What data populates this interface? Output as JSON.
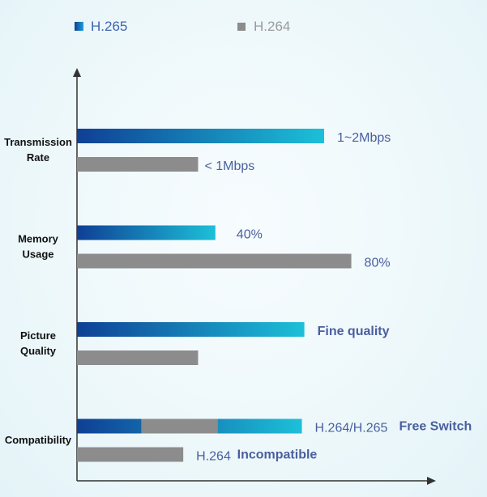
{
  "chart_data": {
    "type": "bar",
    "orientation": "horizontal",
    "legend": [
      {
        "name": "H.265",
        "color": "#1d5aa8"
      },
      {
        "name": "H.264",
        "color": "#8c8c8c"
      }
    ],
    "colors": {
      "h265_start": "#0f3f95",
      "h265_end": "#1cc0d8",
      "h264": "#8c8c8c",
      "label": "#4a5f9e",
      "axis": "#333333"
    },
    "categories": [
      {
        "label_lines": [
          "Transmission",
          "Rate"
        ],
        "bars": [
          {
            "series": "H.265",
            "value": 1.0,
            "label": "1~2Mbps",
            "label_bold": false
          },
          {
            "series": "H.264",
            "value": 0.49,
            "label": "< 1Mbps",
            "label_bold": false
          }
        ]
      },
      {
        "label_lines": [
          "Memory",
          "Usage"
        ],
        "bars": [
          {
            "series": "H.265",
            "value": 0.56,
            "label": "40%",
            "label_bold": false
          },
          {
            "series": "H.264",
            "value": 1.11,
            "label": "80%",
            "label_bold": false
          }
        ]
      },
      {
        "label_lines": [
          "Picture",
          "Quality"
        ],
        "bars": [
          {
            "series": "H.265",
            "value": 0.92,
            "label": "Fine quality",
            "label_bold": true
          },
          {
            "series": "H.264",
            "value": 0.49,
            "label": "",
            "label_bold": false
          }
        ]
      },
      {
        "label_lines": [
          "Compatibility"
        ],
        "bars": [
          {
            "series": "H.265",
            "value": 0.91,
            "segments": [
              {
                "series": "H.264",
                "from": 0.26,
                "to": 0.57
              }
            ],
            "label": "H.264/H.265",
            "label2": "Free Switch",
            "label_bold": false
          },
          {
            "series": "H.264",
            "value": 0.43,
            "label": "H.264",
            "label2": "Incompatible",
            "label_bold": false
          }
        ]
      }
    ]
  }
}
